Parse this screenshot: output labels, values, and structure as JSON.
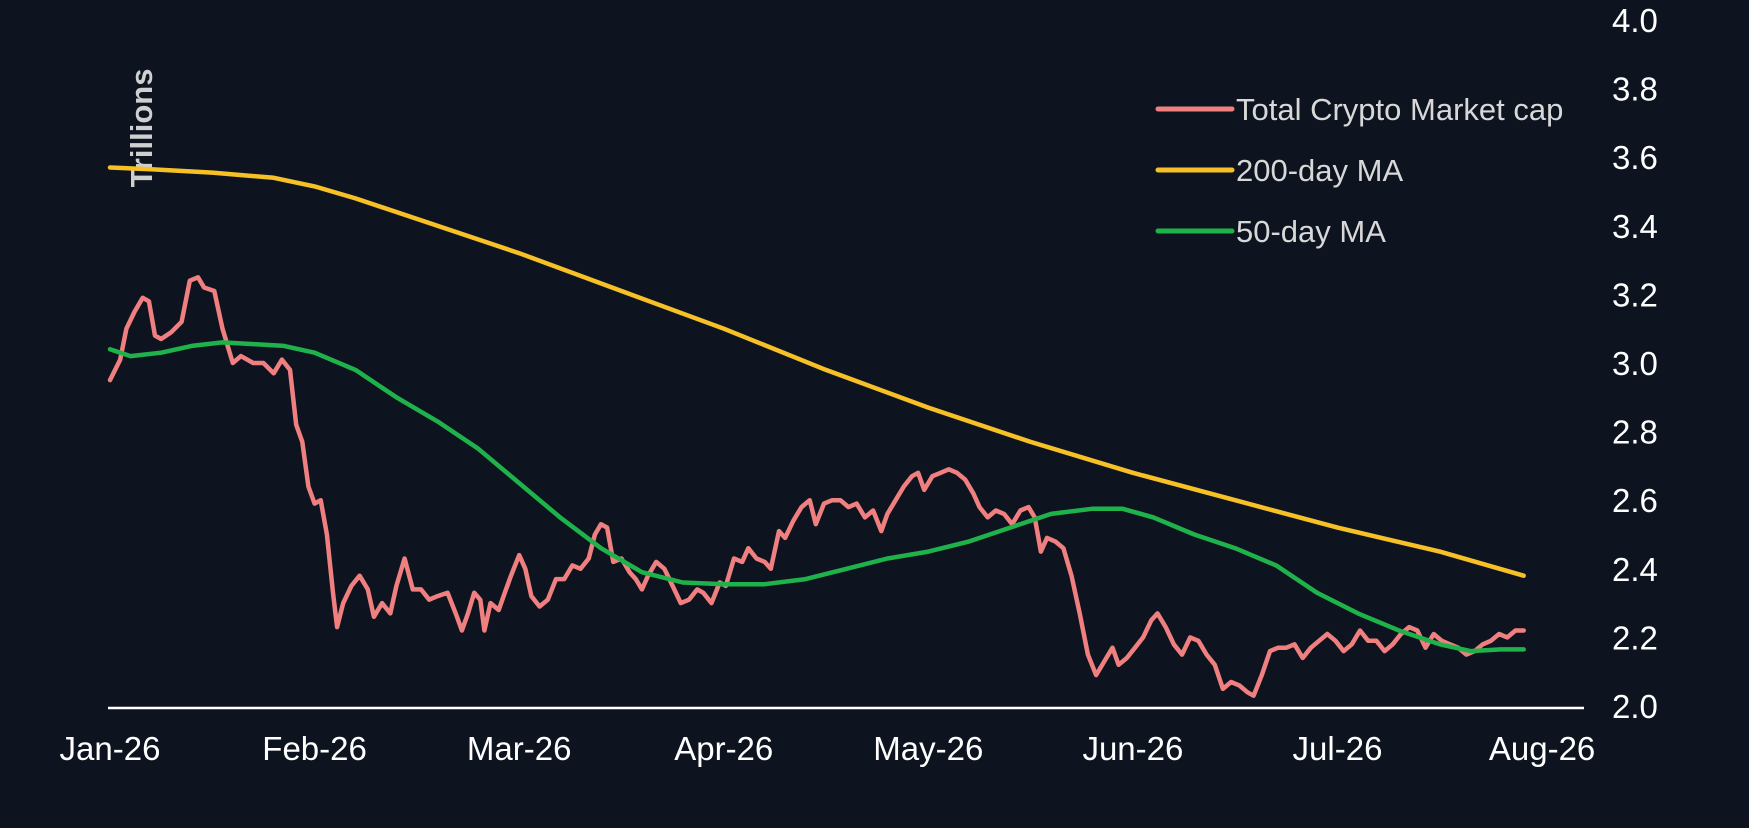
{
  "chart_data": {
    "type": "line",
    "ylabel": "Trillions",
    "ylim": [
      2.0,
      4.0
    ],
    "yticks": [
      "2.0",
      "2.2",
      "2.4",
      "2.6",
      "2.8",
      "3.0",
      "3.2",
      "3.4",
      "3.6",
      "3.8",
      "4.0"
    ],
    "xlim": [
      0,
      7.2
    ],
    "xticks": [
      {
        "label": "Jan-26",
        "x": 0
      },
      {
        "label": "Feb-26",
        "x": 1
      },
      {
        "label": "Mar-26",
        "x": 2
      },
      {
        "label": "Apr-26",
        "x": 3
      },
      {
        "label": "May-26",
        "x": 4
      },
      {
        "label": "Jun-26",
        "x": 5
      },
      {
        "label": "Jul-26",
        "x": 6
      },
      {
        "label": "Aug-26",
        "x": 7
      }
    ],
    "legend_position": "top-right",
    "grid": false,
    "series": [
      {
        "name": "Total Crypto Market cap",
        "color": "#f08080",
        "points": [
          [
            0.0,
            2.95
          ],
          [
            0.05,
            3.01
          ],
          [
            0.08,
            3.1
          ],
          [
            0.12,
            3.15
          ],
          [
            0.16,
            3.19
          ],
          [
            0.19,
            3.18
          ],
          [
            0.22,
            3.08
          ],
          [
            0.25,
            3.07
          ],
          [
            0.3,
            3.09
          ],
          [
            0.35,
            3.12
          ],
          [
            0.39,
            3.24
          ],
          [
            0.43,
            3.25
          ],
          [
            0.46,
            3.22
          ],
          [
            0.51,
            3.21
          ],
          [
            0.55,
            3.1
          ],
          [
            0.6,
            3.0
          ],
          [
            0.64,
            3.02
          ],
          [
            0.7,
            3.0
          ],
          [
            0.75,
            3.0
          ],
          [
            0.8,
            2.97
          ],
          [
            0.84,
            3.01
          ],
          [
            0.88,
            2.98
          ],
          [
            0.91,
            2.82
          ],
          [
            0.94,
            2.77
          ],
          [
            0.97,
            2.64
          ],
          [
            1.0,
            2.59
          ],
          [
            1.03,
            2.6
          ],
          [
            1.06,
            2.5
          ],
          [
            1.09,
            2.33
          ],
          [
            1.11,
            2.23
          ],
          [
            1.14,
            2.3
          ],
          [
            1.18,
            2.35
          ],
          [
            1.22,
            2.38
          ],
          [
            1.26,
            2.34
          ],
          [
            1.29,
            2.26
          ],
          [
            1.33,
            2.3
          ],
          [
            1.37,
            2.27
          ],
          [
            1.4,
            2.35
          ],
          [
            1.44,
            2.43
          ],
          [
            1.48,
            2.34
          ],
          [
            1.52,
            2.34
          ],
          [
            1.56,
            2.31
          ],
          [
            1.6,
            2.32
          ],
          [
            1.65,
            2.33
          ],
          [
            1.69,
            2.27
          ],
          [
            1.72,
            2.22
          ],
          [
            1.75,
            2.27
          ],
          [
            1.78,
            2.33
          ],
          [
            1.81,
            2.31
          ],
          [
            1.83,
            2.22
          ],
          [
            1.86,
            2.3
          ],
          [
            1.9,
            2.28
          ],
          [
            1.93,
            2.33
          ],
          [
            1.96,
            2.38
          ],
          [
            2.0,
            2.44
          ],
          [
            2.03,
            2.4
          ],
          [
            2.06,
            2.32
          ],
          [
            2.1,
            2.29
          ],
          [
            2.14,
            2.31
          ],
          [
            2.18,
            2.37
          ],
          [
            2.22,
            2.37
          ],
          [
            2.26,
            2.41
          ],
          [
            2.3,
            2.4
          ],
          [
            2.34,
            2.43
          ],
          [
            2.37,
            2.5
          ],
          [
            2.4,
            2.53
          ],
          [
            2.43,
            2.52
          ],
          [
            2.46,
            2.42
          ],
          [
            2.5,
            2.43
          ],
          [
            2.54,
            2.39
          ],
          [
            2.57,
            2.37
          ],
          [
            2.6,
            2.34
          ],
          [
            2.63,
            2.38
          ],
          [
            2.67,
            2.42
          ],
          [
            2.71,
            2.4
          ],
          [
            2.75,
            2.35
          ],
          [
            2.79,
            2.3
          ],
          [
            2.83,
            2.31
          ],
          [
            2.87,
            2.34
          ],
          [
            2.9,
            2.33
          ],
          [
            2.94,
            2.3
          ],
          [
            2.98,
            2.36
          ],
          [
            3.01,
            2.35
          ],
          [
            3.05,
            2.43
          ],
          [
            3.09,
            2.42
          ],
          [
            3.12,
            2.46
          ],
          [
            3.16,
            2.43
          ],
          [
            3.2,
            2.42
          ],
          [
            3.23,
            2.4
          ],
          [
            3.27,
            2.51
          ],
          [
            3.3,
            2.49
          ],
          [
            3.34,
            2.54
          ],
          [
            3.38,
            2.58
          ],
          [
            3.42,
            2.6
          ],
          [
            3.45,
            2.53
          ],
          [
            3.49,
            2.59
          ],
          [
            3.53,
            2.6
          ],
          [
            3.57,
            2.6
          ],
          [
            3.61,
            2.58
          ],
          [
            3.65,
            2.59
          ],
          [
            3.69,
            2.55
          ],
          [
            3.73,
            2.57
          ],
          [
            3.77,
            2.51
          ],
          [
            3.8,
            2.56
          ],
          [
            3.84,
            2.6
          ],
          [
            3.88,
            2.64
          ],
          [
            3.92,
            2.67
          ],
          [
            3.95,
            2.68
          ],
          [
            3.98,
            2.63
          ],
          [
            4.02,
            2.67
          ],
          [
            4.06,
            2.68
          ],
          [
            4.1,
            2.69
          ],
          [
            4.14,
            2.68
          ],
          [
            4.18,
            2.66
          ],
          [
            4.22,
            2.62
          ],
          [
            4.25,
            2.58
          ],
          [
            4.29,
            2.55
          ],
          [
            4.33,
            2.57
          ],
          [
            4.37,
            2.56
          ],
          [
            4.41,
            2.53
          ],
          [
            4.45,
            2.57
          ],
          [
            4.49,
            2.58
          ],
          [
            4.52,
            2.55
          ],
          [
            4.55,
            2.45
          ],
          [
            4.58,
            2.49
          ],
          [
            4.62,
            2.48
          ],
          [
            4.66,
            2.46
          ],
          [
            4.7,
            2.38
          ],
          [
            4.74,
            2.27
          ],
          [
            4.78,
            2.15
          ],
          [
            4.82,
            2.09
          ],
          [
            4.86,
            2.13
          ],
          [
            4.9,
            2.17
          ],
          [
            4.93,
            2.12
          ],
          [
            4.97,
            2.14
          ],
          [
            5.01,
            2.17
          ],
          [
            5.05,
            2.2
          ],
          [
            5.09,
            2.25
          ],
          [
            5.12,
            2.27
          ],
          [
            5.16,
            2.23
          ],
          [
            5.2,
            2.18
          ],
          [
            5.24,
            2.15
          ],
          [
            5.28,
            2.2
          ],
          [
            5.32,
            2.19
          ],
          [
            5.36,
            2.15
          ],
          [
            5.4,
            2.12
          ],
          [
            5.44,
            2.05
          ],
          [
            5.48,
            2.07
          ],
          [
            5.52,
            2.06
          ],
          [
            5.56,
            2.04
          ],
          [
            5.59,
            2.03
          ],
          [
            5.63,
            2.09
          ],
          [
            5.67,
            2.16
          ],
          [
            5.71,
            2.17
          ],
          [
            5.75,
            2.17
          ],
          [
            5.79,
            2.18
          ],
          [
            5.83,
            2.14
          ],
          [
            5.87,
            2.17
          ],
          [
            5.91,
            2.19
          ],
          [
            5.95,
            2.21
          ],
          [
            5.99,
            2.19
          ],
          [
            6.03,
            2.16
          ],
          [
            6.07,
            2.18
          ],
          [
            6.11,
            2.22
          ],
          [
            6.15,
            2.19
          ],
          [
            6.19,
            2.19
          ],
          [
            6.23,
            2.16
          ],
          [
            6.27,
            2.18
          ],
          [
            6.31,
            2.21
          ],
          [
            6.35,
            2.23
          ],
          [
            6.39,
            2.22
          ],
          [
            6.43,
            2.17
          ],
          [
            6.47,
            2.21
          ],
          [
            6.51,
            2.19
          ],
          [
            6.55,
            2.18
          ],
          [
            6.59,
            2.17
          ],
          [
            6.63,
            2.15
          ],
          [
            6.67,
            2.16
          ],
          [
            6.71,
            2.18
          ],
          [
            6.75,
            2.19
          ],
          [
            6.79,
            2.21
          ],
          [
            6.83,
            2.2
          ],
          [
            6.87,
            2.22
          ],
          [
            6.91,
            2.22
          ]
        ]
      },
      {
        "name": "200-day MA",
        "color": "#f6c026",
        "points": [
          [
            0.0,
            3.57
          ],
          [
            0.2,
            3.565
          ],
          [
            0.5,
            3.555
          ],
          [
            0.8,
            3.54
          ],
          [
            1.0,
            3.515
          ],
          [
            1.2,
            3.48
          ],
          [
            1.5,
            3.42
          ],
          [
            2.0,
            3.32
          ],
          [
            2.5,
            3.21
          ],
          [
            3.0,
            3.1
          ],
          [
            3.5,
            2.98
          ],
          [
            4.0,
            2.87
          ],
          [
            4.5,
            2.77
          ],
          [
            5.0,
            2.68
          ],
          [
            5.5,
            2.6
          ],
          [
            6.0,
            2.52
          ],
          [
            6.5,
            2.45
          ],
          [
            6.91,
            2.38
          ]
        ]
      },
      {
        "name": "50-day MA",
        "color": "#1fb24a",
        "points": [
          [
            0.0,
            3.04
          ],
          [
            0.1,
            3.02
          ],
          [
            0.25,
            3.03
          ],
          [
            0.4,
            3.05
          ],
          [
            0.55,
            3.06
          ],
          [
            0.7,
            3.055
          ],
          [
            0.85,
            3.05
          ],
          [
            1.0,
            3.03
          ],
          [
            1.2,
            2.98
          ],
          [
            1.4,
            2.9
          ],
          [
            1.6,
            2.83
          ],
          [
            1.8,
            2.75
          ],
          [
            2.0,
            2.65
          ],
          [
            2.2,
            2.55
          ],
          [
            2.4,
            2.46
          ],
          [
            2.6,
            2.39
          ],
          [
            2.8,
            2.36
          ],
          [
            3.0,
            2.355
          ],
          [
            3.2,
            2.355
          ],
          [
            3.4,
            2.37
          ],
          [
            3.6,
            2.4
          ],
          [
            3.8,
            2.43
          ],
          [
            4.0,
            2.45
          ],
          [
            4.2,
            2.48
          ],
          [
            4.4,
            2.52
          ],
          [
            4.6,
            2.56
          ],
          [
            4.8,
            2.575
          ],
          [
            4.95,
            2.575
          ],
          [
            5.1,
            2.55
          ],
          [
            5.3,
            2.5
          ],
          [
            5.5,
            2.46
          ],
          [
            5.7,
            2.41
          ],
          [
            5.9,
            2.33
          ],
          [
            6.1,
            2.27
          ],
          [
            6.3,
            2.22
          ],
          [
            6.5,
            2.18
          ],
          [
            6.65,
            2.16
          ],
          [
            6.8,
            2.165
          ],
          [
            6.91,
            2.165
          ]
        ]
      }
    ]
  }
}
